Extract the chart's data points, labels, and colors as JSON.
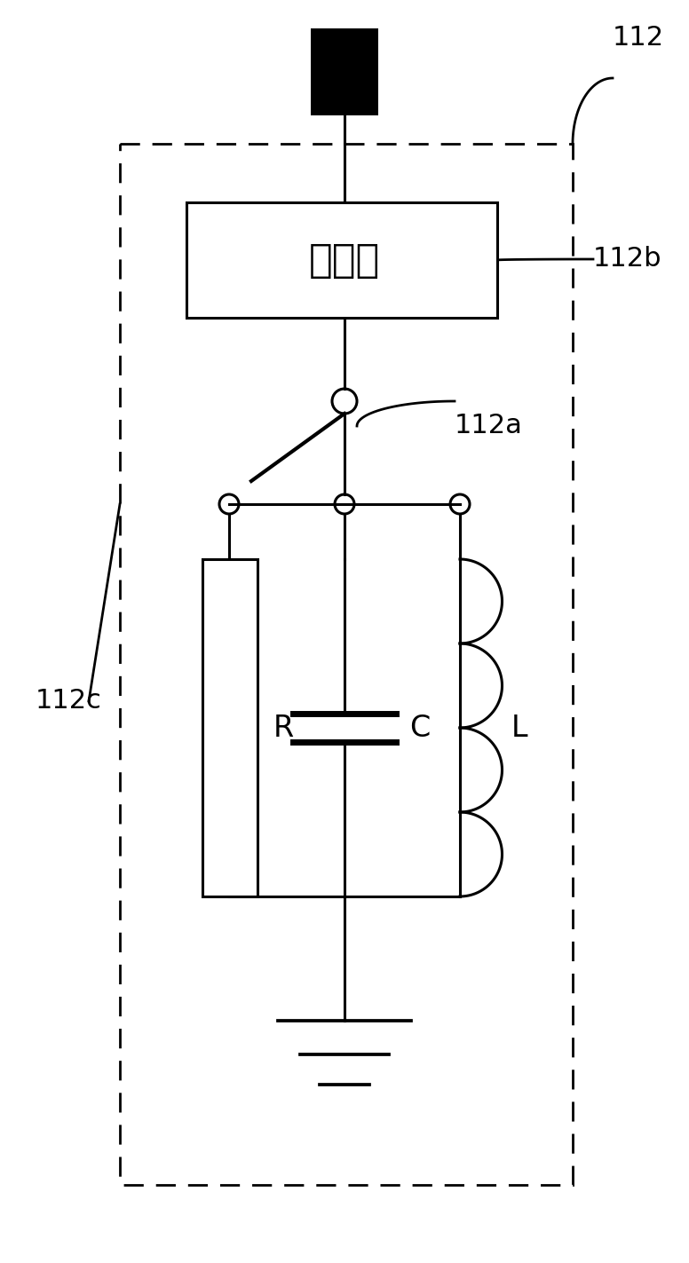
{
  "bg_color": "#ffffff",
  "line_color": "#000000",
  "figsize": [
    7.76,
    14.23
  ],
  "dpi": 100,
  "controller_label": "控制器",
  "label_112": "112",
  "label_112a": "112a",
  "label_112b": "112b",
  "label_112c": "112c",
  "label_R": "R",
  "label_C": "C",
  "label_L": "L"
}
